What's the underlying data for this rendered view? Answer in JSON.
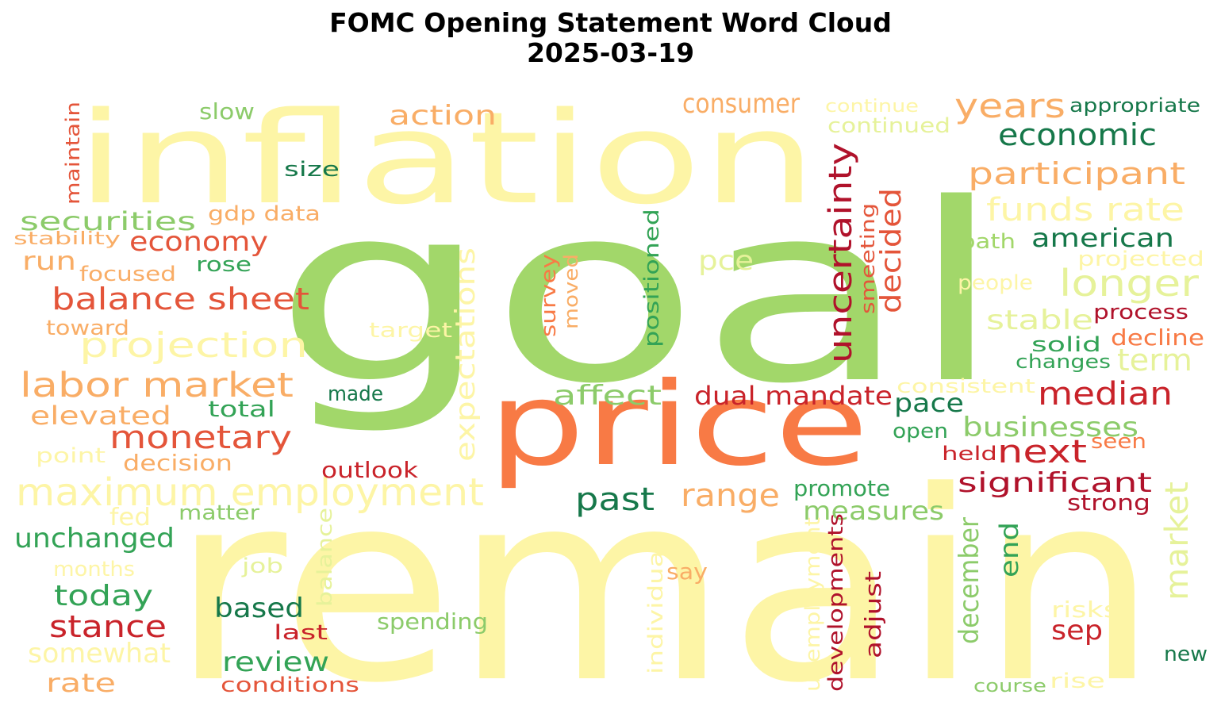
{
  "title": {
    "line1": "FOMC Opening Statement Word Cloud",
    "line2": "2025-03-19"
  },
  "colors": {
    "pale_yellow": "#fdf5a6",
    "light_yellow": "#fcf2a0",
    "lime": "#a2d76a",
    "light_green": "#8ccb6a",
    "mid_green": "#33a356",
    "dark_green": "#16784a",
    "orange": "#f87a45",
    "light_orange": "#f9ad66",
    "red_orange": "#e4553a",
    "red": "#c9232a",
    "crimson": "#b0122b",
    "pale_lime": "#e6f29a"
  },
  "words": [
    "goal",
    "remain",
    "inflation",
    "price",
    "maximum employment",
    "labor market",
    "balance sheet",
    "monetary",
    "projection",
    "economy",
    "securities",
    "stance",
    "today",
    "unchanged",
    "elevated",
    "somewhat",
    "rate",
    "run",
    "focused",
    "toward",
    "stability",
    "maintain",
    "slow",
    "size",
    "gdp data",
    "rose",
    "action",
    "consumer",
    "continue",
    "continued",
    "years",
    "appropriate",
    "economic",
    "participant",
    "funds rate",
    "longer",
    "american",
    "projected",
    "uncertainty",
    "smeeting",
    "decided",
    "pce",
    "path",
    "people",
    "process",
    "stable",
    "term",
    "decline",
    "solid",
    "changes",
    "median",
    "consistent",
    "positioned",
    "survey",
    "moved",
    "expectations",
    "target",
    "affect",
    "dual mandate",
    "pace",
    "businesses",
    "next",
    "open",
    "seen",
    "held",
    "significant",
    "strong",
    "made",
    "total",
    "point",
    "decision",
    "outlook",
    "fed",
    "matter",
    "past",
    "range",
    "promote",
    "measures",
    "market",
    "months",
    "job",
    "say",
    "individual",
    "balance",
    "based",
    "last",
    "review",
    "conditions",
    "spending",
    "unemployment",
    "developments",
    "adjust",
    "december",
    "end",
    "sep",
    "risks",
    "rise",
    "course",
    "new"
  ]
}
